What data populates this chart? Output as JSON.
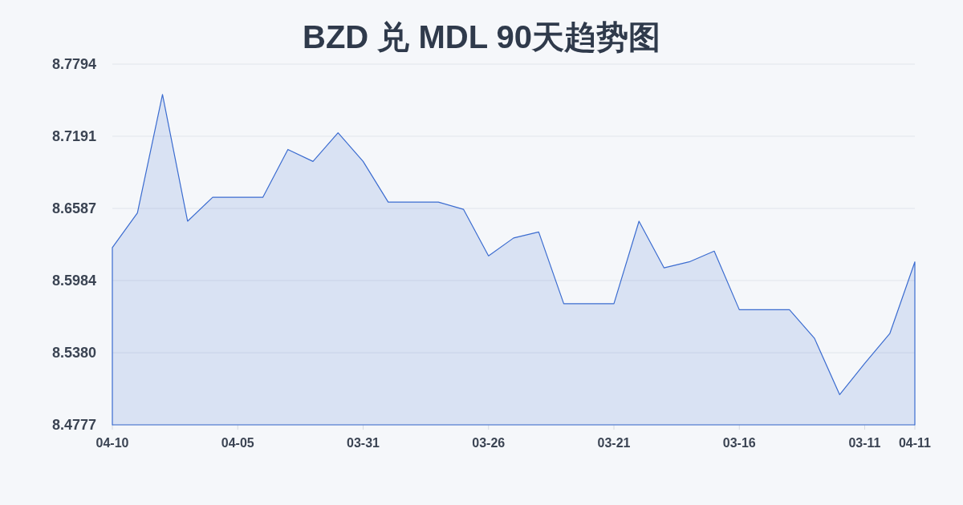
{
  "chart_data": {
    "type": "area",
    "title": "BZD 兑 MDL 90天趋势图",
    "categories": [
      "04-10",
      null,
      null,
      null,
      null,
      "04-05",
      null,
      null,
      null,
      null,
      "03-31",
      null,
      null,
      null,
      null,
      "03-26",
      null,
      null,
      null,
      null,
      "03-21",
      null,
      null,
      null,
      null,
      "03-16",
      null,
      null,
      null,
      null,
      "03-11",
      null,
      "04-11"
    ],
    "values": [
      8.626,
      8.655,
      8.754,
      8.648,
      8.668,
      8.668,
      8.668,
      8.708,
      8.698,
      8.722,
      8.698,
      8.664,
      8.664,
      8.664,
      8.658,
      8.619,
      8.634,
      8.639,
      8.579,
      8.579,
      8.579,
      8.648,
      8.609,
      8.614,
      8.623,
      8.574,
      8.574,
      8.574,
      8.55,
      8.503,
      8.529,
      8.554,
      8.614
    ],
    "color": "#3b6cd0",
    "ylim": [
      8.4777,
      8.7794
    ],
    "yticks": [
      8.4777,
      {
        "value": 8.538,
        "label": "8.5380"
      },
      8.5984,
      8.6587,
      8.7191,
      8.7794
    ],
    "grid": "y"
  }
}
